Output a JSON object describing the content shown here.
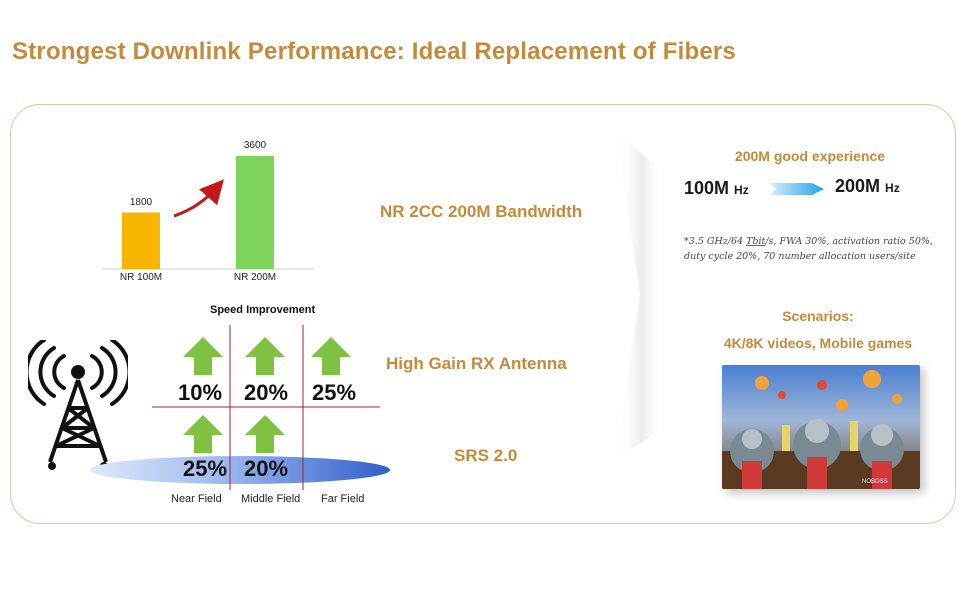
{
  "title": "Strongest Downlink Performance: Ideal Replacement of Fibers",
  "bar_chart": {
    "categories": [
      "NR 100M",
      "NR 200M"
    ],
    "values": [
      1800,
      3600
    ],
    "value_labels": [
      "1800",
      "3600"
    ],
    "colors": [
      "#f7b500",
      "#7ed35a"
    ]
  },
  "features": {
    "bandwidth": "NR 2CC 200M Bandwidth",
    "antenna": "High Gain RX Antenna",
    "srs": "SRS 2.0"
  },
  "speed_grid": {
    "title": "Speed Improvement",
    "row1": [
      "10%",
      "20%",
      "25%"
    ],
    "row2": [
      "25%",
      "20%"
    ],
    "fields": [
      "Near Field",
      "Middle Field",
      "Far Field"
    ]
  },
  "right": {
    "experience_title": "200M good experience",
    "from_big": "100M",
    "from_unit": "Hz",
    "to_big": "200M",
    "to_unit": "Hz",
    "note_prefix": "*3.5 GHz/64 ",
    "note_underlined": "Tbit",
    "note_rest": "/s, FWA 30%, activation ratio 50%, duty cycle 20%, 70 number allocation users/site",
    "scenarios_title": "Scenarios:",
    "scenarios_text": "4K/8K videos, Mobile games",
    "game_watermark": "NOBOSS"
  },
  "colors": {
    "accent": "#c48a3c",
    "arrow_green": "#7fc241",
    "chart_yellow": "#f7b500",
    "chart_green": "#7ed35a",
    "ellipse_blue": "#3f6fd0",
    "arrow_blue": "#2aa8e6"
  }
}
